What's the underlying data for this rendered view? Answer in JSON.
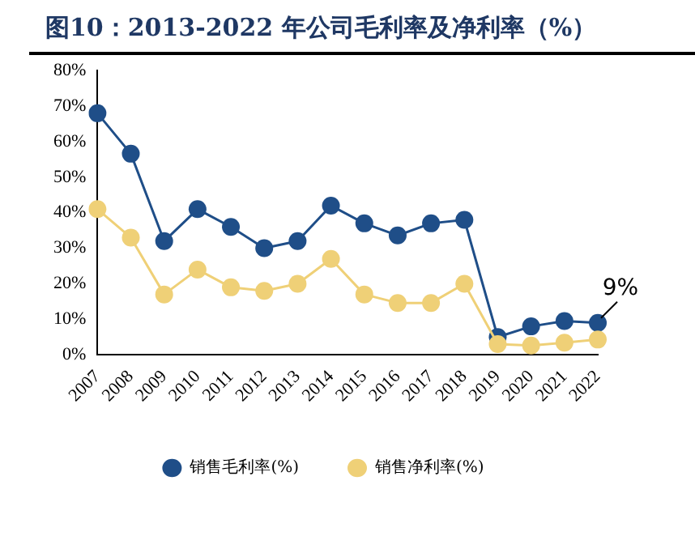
{
  "chart_data": {
    "type": "line",
    "title": "图10：2013-2022 年公司毛利率及净利率（%）",
    "categories": [
      "2007",
      "2008",
      "2009",
      "2010",
      "2011",
      "2012",
      "2013",
      "2014",
      "2015",
      "2016",
      "2017",
      "2018",
      "2019",
      "2020",
      "2021",
      "2022"
    ],
    "series": [
      {
        "name": "销售毛利率(%)",
        "color": "#1f4e88",
        "values": [
          68,
          56.6,
          32,
          41,
          36,
          30,
          32,
          42,
          37,
          33.6,
          37,
          38,
          5,
          8,
          9.5,
          9
        ]
      },
      {
        "name": "销售净利率(%)",
        "color": "#efd077",
        "values": [
          41,
          33,
          17,
          24,
          19,
          18,
          20,
          27,
          17,
          14.6,
          14.6,
          20,
          3,
          2.6,
          3.4,
          4.3
        ]
      }
    ],
    "ylim": [
      0,
      80
    ],
    "yticks": [
      {
        "value": 0,
        "label": "0%"
      },
      {
        "value": 10,
        "label": "10%"
      },
      {
        "value": 20,
        "label": "20%"
      },
      {
        "value": 30,
        "label": "30%"
      },
      {
        "value": 40,
        "label": "40%"
      },
      {
        "value": 50,
        "label": "50%"
      },
      {
        "value": 60,
        "label": "60%"
      },
      {
        "value": 70,
        "label": "70%"
      },
      {
        "value": 80,
        "label": "80%"
      }
    ],
    "grid": false,
    "legend": "bottom",
    "marker": "circle",
    "line_style": "solid",
    "annotations": [
      {
        "text": "9%",
        "x": "2022",
        "y": 9
      }
    ]
  }
}
